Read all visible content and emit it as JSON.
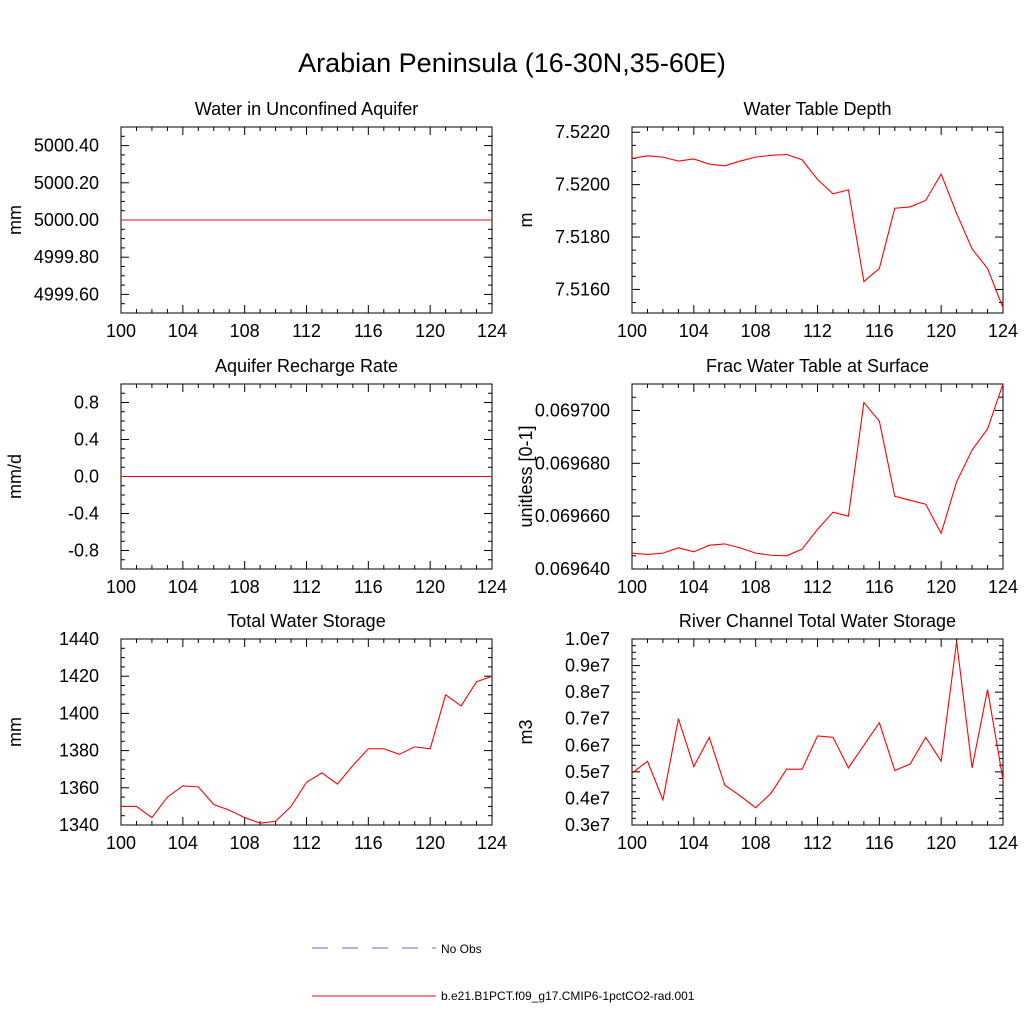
{
  "title": "Arabian Peninsula (16-30N,35-60E)",
  "legend": {
    "obs_label": "No Obs",
    "model_label": "b.e21.B1PCT.f09_g17.CMIP6-1pctCO2-rad.001",
    "obs_color": "#6464c8",
    "model_color": "#ff0000"
  },
  "chart_data": [
    {
      "type": "line",
      "title": "Water in Unconfined Aquifer",
      "ylabel": "mm",
      "xlim": [
        100,
        124
      ],
      "ylim": [
        4999.5,
        5000.5
      ],
      "xticks": [
        100,
        104,
        108,
        112,
        116,
        120,
        124
      ],
      "yticks": [
        4999.6,
        4999.8,
        5000.0,
        5000.2,
        5000.4
      ],
      "ytick_labels": [
        "4999.60",
        "4999.80",
        "5000.00",
        "5000.20",
        "5000.40"
      ],
      "series": [
        {
          "x": [
            100,
            124
          ],
          "y": [
            5000.0,
            5000.0
          ]
        }
      ]
    },
    {
      "type": "line",
      "title": "Water Table Depth",
      "ylabel": "m",
      "xlim": [
        100,
        124
      ],
      "ylim": [
        7.5151,
        7.5222
      ],
      "xticks": [
        100,
        104,
        108,
        112,
        116,
        120,
        124
      ],
      "yticks": [
        7.516,
        7.518,
        7.52,
        7.522
      ],
      "ytick_labels": [
        "7.5160",
        "7.5180",
        "7.5200",
        "7.5220"
      ],
      "series": [
        {
          "x": [
            100,
            101,
            102,
            103,
            104,
            105,
            106,
            107,
            108,
            109,
            110,
            111,
            112,
            113,
            114,
            115,
            116,
            117,
            118,
            119,
            120,
            121,
            122,
            123,
            124
          ],
          "y": [
            7.521,
            7.5211,
            7.52105,
            7.5209,
            7.52098,
            7.52078,
            7.52072,
            7.5209,
            7.52105,
            7.52112,
            7.52115,
            7.52095,
            7.5202,
            7.51965,
            7.5198,
            7.5163,
            7.5168,
            7.5191,
            7.51915,
            7.5194,
            7.5204,
            7.5189,
            7.51755,
            7.5168,
            7.5153
          ]
        }
      ]
    },
    {
      "type": "line",
      "title": "Aquifer Recharge Rate",
      "ylabel": "mm/d",
      "xlim": [
        100,
        124
      ],
      "ylim": [
        -1,
        1
      ],
      "xticks": [
        100,
        104,
        108,
        112,
        116,
        120,
        124
      ],
      "yticks": [
        -0.8,
        -0.4,
        0.0,
        0.4,
        0.8
      ],
      "ytick_labels": [
        "-0.8",
        "-0.4",
        "0.0",
        "0.4",
        "0.8"
      ],
      "series": [
        {
          "x": [
            100,
            124
          ],
          "y": [
            0,
            0
          ]
        }
      ]
    },
    {
      "type": "line",
      "title": "Frac Water Table at Surface",
      "ylabel": "unitless [0-1]",
      "xlim": [
        100,
        124
      ],
      "ylim": [
        0.06964,
        0.06971
      ],
      "xticks": [
        100,
        104,
        108,
        112,
        116,
        120,
        124
      ],
      "yticks": [
        0.06964,
        0.06966,
        0.06968,
        0.0697
      ],
      "ytick_labels": [
        "0.069640",
        "0.069660",
        "0.069680",
        "0.069700"
      ],
      "series": [
        {
          "x": [
            100,
            101,
            102,
            103,
            104,
            105,
            106,
            107,
            108,
            109,
            110,
            111,
            112,
            113,
            114,
            115,
            116,
            117,
            118,
            119,
            120,
            121,
            122,
            123,
            124
          ],
          "y": [
            0.069646,
            0.0696455,
            0.069646,
            0.069648,
            0.0696465,
            0.069649,
            0.0696495,
            0.069648,
            0.069646,
            0.0696452,
            0.069645,
            0.0696475,
            0.069655,
            0.0696615,
            0.06966,
            0.069703,
            0.069696,
            0.0696675,
            0.069666,
            0.0696645,
            0.0696535,
            0.069673,
            0.069685,
            0.069693,
            0.06971
          ]
        }
      ]
    },
    {
      "type": "line",
      "title": "Total Water Storage",
      "ylabel": "mm",
      "xlim": [
        100,
        124
      ],
      "ylim": [
        1340,
        1440
      ],
      "xticks": [
        100,
        104,
        108,
        112,
        116,
        120,
        124
      ],
      "yticks": [
        1340,
        1360,
        1380,
        1400,
        1420,
        1440
      ],
      "ytick_labels": [
        "1340",
        "1360",
        "1380",
        "1400",
        "1420",
        "1440"
      ],
      "series": [
        {
          "x": [
            100,
            101,
            102,
            103,
            104,
            105,
            106,
            107,
            108,
            109,
            110,
            111,
            112,
            113,
            114,
            115,
            116,
            117,
            118,
            119,
            120,
            121,
            122,
            123,
            124
          ],
          "y": [
            1350,
            1350,
            1344,
            1355,
            1361,
            1360.5,
            1351,
            1348,
            1344,
            1341,
            1342,
            1350,
            1363,
            1368,
            1362,
            1372,
            1381,
            1381,
            1378,
            1382,
            1381,
            1410,
            1404,
            1417,
            1420
          ]
        }
      ]
    },
    {
      "type": "line",
      "title": "River Channel Total Water Storage",
      "ylabel": "m3",
      "xlim": [
        100,
        124
      ],
      "ylim": [
        3000000,
        10000000
      ],
      "xticks": [
        100,
        104,
        108,
        112,
        116,
        120,
        124
      ],
      "yticks": [
        3000000,
        4000000,
        5000000,
        6000000,
        7000000,
        8000000,
        9000000,
        10000000
      ],
      "ytick_labels": [
        "0.3e7",
        "0.4e7",
        "0.5e7",
        "0.6e7",
        "0.7e7",
        "0.8e7",
        "0.9e7",
        "1.0e7"
      ],
      "series": [
        {
          "x": [
            100,
            101,
            102,
            103,
            104,
            105,
            106,
            107,
            108,
            109,
            110,
            111,
            112,
            113,
            114,
            115,
            116,
            117,
            118,
            119,
            120,
            121,
            122,
            123,
            124
          ],
          "y": [
            4950000,
            5400000,
            3950000,
            7000000,
            5200000,
            6300000,
            4500000,
            4100000,
            3650000,
            4200000,
            5100000,
            5100000,
            6350000,
            6300000,
            5150000,
            6000000,
            6850000,
            5050000,
            5300000,
            6300000,
            5400000,
            9900000,
            5150000,
            8100000,
            4700000
          ]
        }
      ]
    }
  ]
}
